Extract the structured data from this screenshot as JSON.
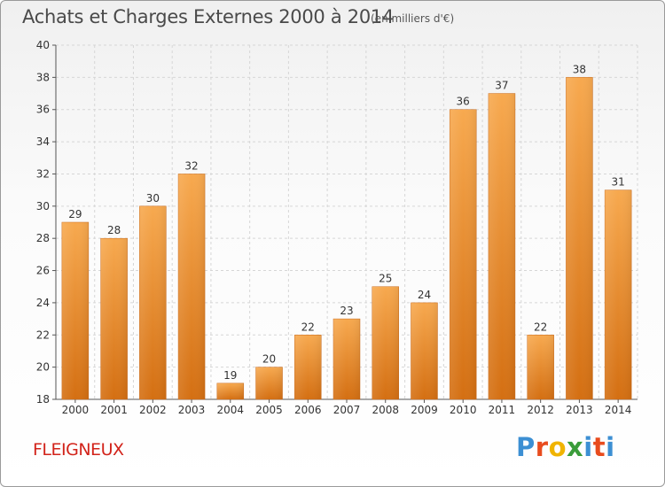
{
  "header": {
    "title": "Achats et Charges Externes 2000 à 2014",
    "subtitle": "(en milliers d'€)"
  },
  "footer": {
    "commune": "FLEIGNEUX",
    "logo": {
      "letters": [
        "P",
        "r",
        "o",
        "x",
        "i",
        "t",
        "i"
      ],
      "colors": [
        "#3c8fd3",
        "#e84c1e",
        "#f0b400",
        "#3a9c3a",
        "#3c8fd3",
        "#e84c1e",
        "#3c8fd3"
      ]
    }
  },
  "chart_data": {
    "type": "bar",
    "title": "Achats et Charges Externes 2000 à 2014",
    "subtitle": "(en milliers d'€)",
    "xlabel": "",
    "ylabel": "",
    "categories": [
      "2000",
      "2001",
      "2002",
      "2003",
      "2004",
      "2005",
      "2006",
      "2007",
      "2008",
      "2009",
      "2010",
      "2011",
      "2012",
      "2013",
      "2014"
    ],
    "values": [
      29,
      28,
      30,
      32,
      19,
      20,
      22,
      23,
      25,
      24,
      36,
      37,
      22,
      38,
      31
    ],
    "ylim": [
      18,
      40
    ],
    "yticks": [
      18,
      20,
      22,
      24,
      26,
      28,
      30,
      32,
      34,
      36,
      38,
      40
    ],
    "grid": true,
    "bar_color": "#f08a2c",
    "data_labels": true
  }
}
